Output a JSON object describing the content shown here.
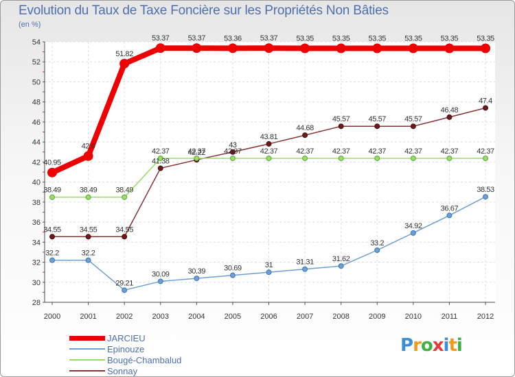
{
  "chart_data": {
    "type": "line",
    "title": "Evolution du Taux de Taxe Foncière sur les Propriétés Non Bâties",
    "ylabel": "(en %)",
    "xlabel": "",
    "categories": [
      "2000",
      "2001",
      "2002",
      "2003",
      "2004",
      "2005",
      "2006",
      "2007",
      "2008",
      "2009",
      "2010",
      "2011",
      "2012"
    ],
    "ylim": [
      28,
      54
    ],
    "yticks": [
      28,
      30,
      32,
      34,
      36,
      38,
      40,
      42,
      44,
      46,
      48,
      50,
      52,
      54
    ],
    "grid": true,
    "series": [
      {
        "name": "JARCIEU",
        "color": "#ee0000",
        "values": [
          40.95,
          42.6,
          51.82,
          53.37,
          53.37,
          53.36,
          53.37,
          53.35,
          53.35,
          53.35,
          53.35,
          53.35,
          53.35
        ],
        "labels": [
          "40.95",
          "42.6",
          "51.82",
          "53.37",
          "53.37",
          "53.36",
          "53.37",
          "53.35",
          "53.35",
          "53.35",
          "53.35",
          "53.35",
          "53.35"
        ]
      },
      {
        "name": "Epinouze",
        "color": "#6e9fd4",
        "values": [
          32.2,
          32.2,
          29.21,
          30.09,
          30.39,
          30.69,
          31,
          31.31,
          31.62,
          33.2,
          34.92,
          36.67,
          38.53
        ],
        "labels": [
          "32.2",
          "32.2",
          "29.21",
          "30.09",
          "30.39",
          "30.69",
          "31",
          "31.31",
          "31.62",
          "33.2",
          "34.92",
          "36.67",
          "38.53"
        ]
      },
      {
        "name": "Bougé-Chambalud",
        "color": "#99dd66",
        "values": [
          38.49,
          38.49,
          38.49,
          42.37,
          42.37,
          42.37,
          42.37,
          42.37,
          42.37,
          42.37,
          42.37,
          42.37,
          42.37
        ],
        "labels": [
          "38.49",
          "38.49",
          "38.49",
          "42.37",
          "42.37",
          "42.37",
          "42.37",
          "42.37",
          "42.37",
          "42.37",
          "42.37",
          "42.37",
          "42.37"
        ]
      },
      {
        "name": "Sonnay",
        "color": "#883333",
        "values": [
          34.55,
          34.55,
          34.55,
          41.38,
          42.22,
          43,
          43.81,
          44.68,
          45.57,
          45.57,
          45.57,
          46.48,
          47.4
        ],
        "labels": [
          "34.55",
          "34.55",
          "34.55",
          "41.38",
          "42.22",
          "43",
          "43.81",
          "44.68",
          "45.57",
          "45.57",
          "45.57",
          "46.48",
          "47.4"
        ]
      }
    ]
  },
  "logo": {
    "text": "Proxiti",
    "letters": [
      {
        "ch": "P",
        "color": "#3b8fd8"
      },
      {
        "ch": "r",
        "color": "#f29a1d"
      },
      {
        "ch": "o",
        "color": "#3cb043"
      },
      {
        "ch": "x",
        "color": "#e63a3a"
      },
      {
        "ch": "i",
        "color": "#3b8fd8"
      },
      {
        "ch": "t",
        "color": "#f29a1d"
      },
      {
        "ch": "i",
        "color": "#3cb043"
      }
    ]
  }
}
